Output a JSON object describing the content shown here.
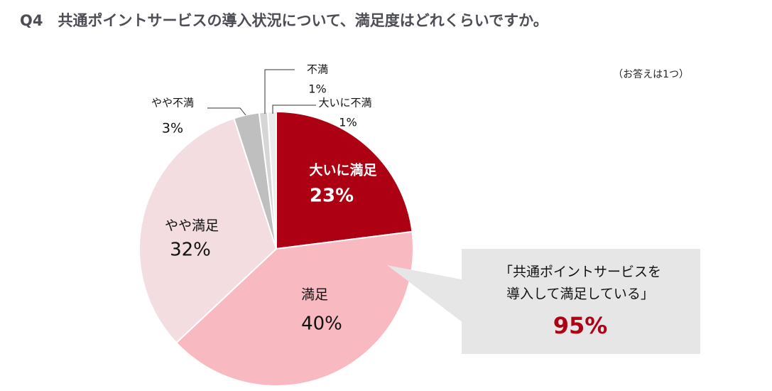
{
  "chart_data": {
    "type": "pie",
    "title": "Q4　共通ポイントサービスの導入状況について、満足度はどれくらいですか。",
    "subtitle": "（お答えは1つ）",
    "categories": [
      "大いに満足",
      "満足",
      "やや満足",
      "やや不満",
      "不満",
      "大いに不満"
    ],
    "values": [
      23,
      40,
      32,
      3,
      1,
      1
    ],
    "value_labels": [
      "23%",
      "40%",
      "32%",
      "3%",
      "1%",
      "1%"
    ],
    "colors": [
      "#ad0012",
      "#f9b9c1",
      "#f3dde1",
      "#bfbfbf",
      "#d6d6d6",
      "#ececec"
    ],
    "annotation": {
      "lines": [
        "「共通ポイントサービスを",
        "導入して満足している」"
      ],
      "value_label": "95%"
    }
  }
}
